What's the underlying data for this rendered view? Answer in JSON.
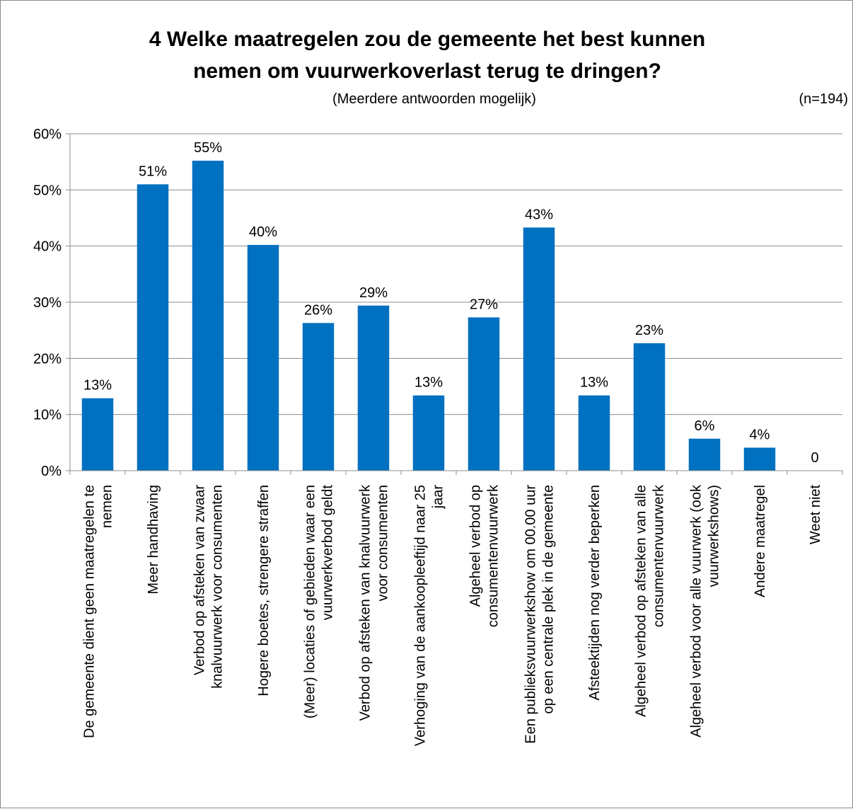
{
  "header": {
    "title_line1": "4 Welke maatregelen zou de gemeente het best kunnen",
    "title_line2": "nemen om vuurwerkoverlast terug te dringen?",
    "subtitle": "(Meerdere antwoorden mogelijk)",
    "sample_size": "(n=194)"
  },
  "colors": {
    "bar": "#0070C0",
    "grid": "#8c8c8c",
    "axis": "#8c8c8c",
    "text": "#000000"
  },
  "chart_data": {
    "type": "bar",
    "title": "4 Welke maatregelen zou de gemeente het best kunnen nemen om vuurwerkoverlast terug te dringen?",
    "subtitle": "(Meerdere antwoorden mogelijk)",
    "ylim": [
      0,
      60
    ],
    "yticks": [
      0,
      10,
      20,
      30,
      40,
      50,
      60
    ],
    "ytick_labels": [
      "0%",
      "10%",
      "20%",
      "30%",
      "40%",
      "50%",
      "60%"
    ],
    "grid": true,
    "categories": [
      [
        "De gemeente dient geen maatregelen te",
        "nemen"
      ],
      [
        "Meer handhaving"
      ],
      [
        "Verbod op afsteken van zwaar",
        "knalvuurwerk voor consumenten"
      ],
      [
        "Hogere boetes, strengere straffen"
      ],
      [
        "(Meer) locaties of gebieden waar een",
        "vuurwerkverbod geldt"
      ],
      [
        "Verbod op afsteken van knalvuurwerk",
        "voor consumenten"
      ],
      [
        "Verhoging van de aankoopleeftijd naar 25",
        "jaar"
      ],
      [
        "Algeheel verbod op",
        "consumentenvuurwerk"
      ],
      [
        "Een publieksvuurwerkshow om 00.00 uur",
        "op een centrale plek in de gemeente"
      ],
      [
        "Afsteektijden nog verder beperken"
      ],
      [
        "Algeheel verbod op afsteken van alle",
        "consumentenvuurwerk"
      ],
      [
        "Algeheel verbod voor alle vuurwerk (ook",
        "vuurwerkshows)"
      ],
      [
        "Andere maatregel"
      ],
      [
        "Weet niet"
      ]
    ],
    "values": [
      12.9,
      51.0,
      55.2,
      40.2,
      26.3,
      29.4,
      13.4,
      27.3,
      43.3,
      13.4,
      22.7,
      5.7,
      4.1,
      0
    ],
    "data_labels": [
      "13%",
      "51%",
      "55%",
      "40%",
      "26%",
      "29%",
      "13%",
      "27%",
      "43%",
      "13%",
      "23%",
      "6%",
      "4%",
      "0"
    ]
  }
}
